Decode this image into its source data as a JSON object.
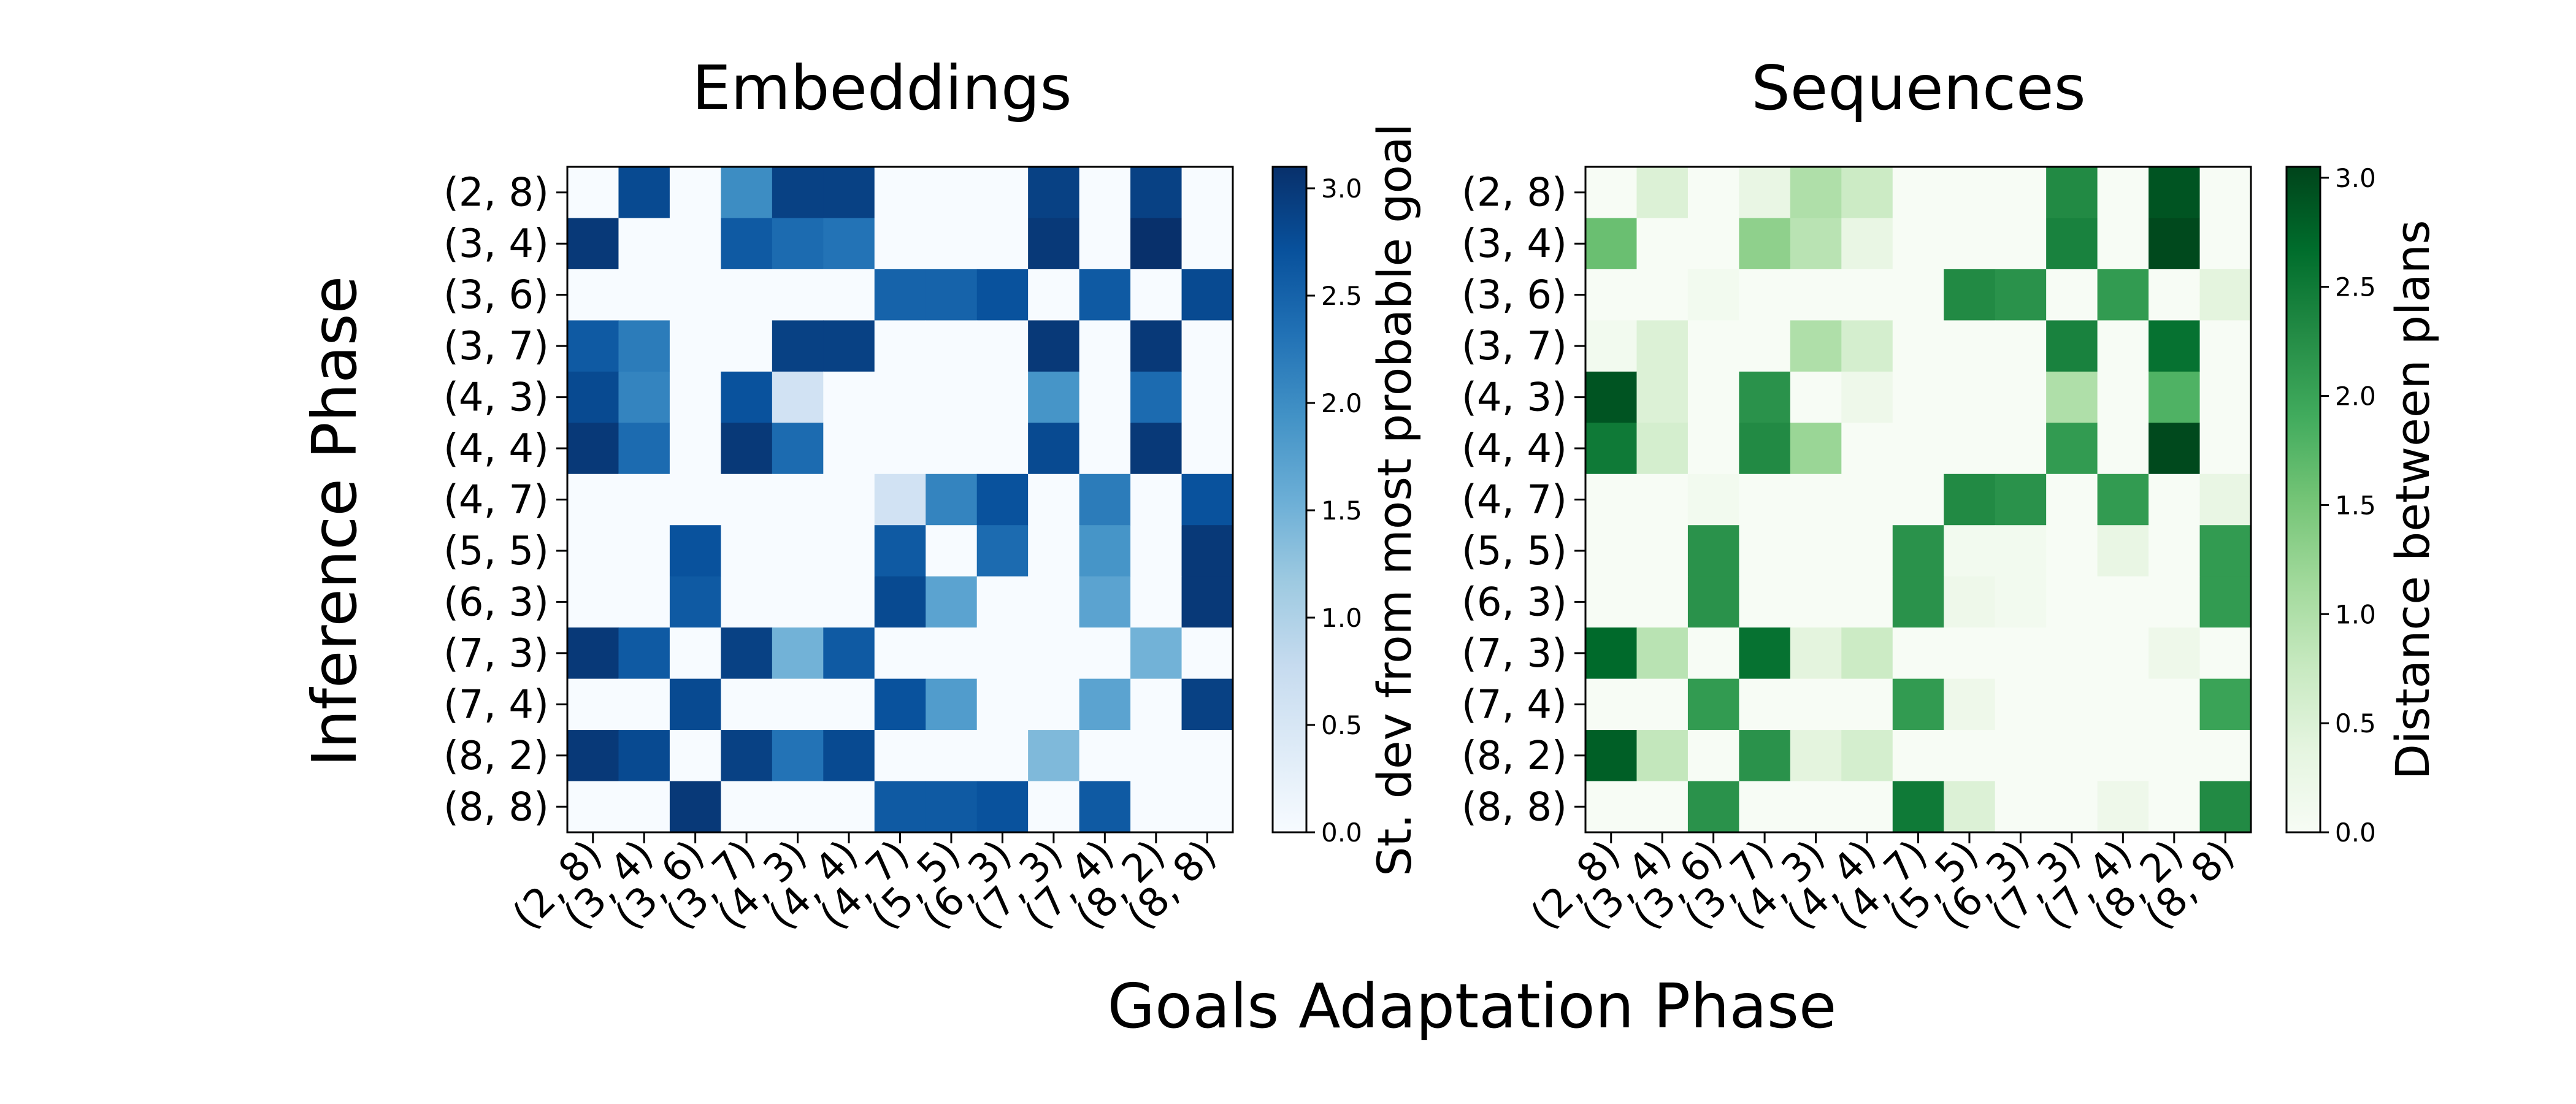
{
  "figure": {
    "supxlabel": "Goals Adaptation Phase",
    "supylabel": "Inference Phase"
  },
  "chart_data": [
    {
      "type": "heatmap",
      "title": "Embeddings",
      "colormap": "Blues",
      "vmin": 0,
      "vmax": 3.1,
      "colorbar_label": "St. dev from most probable goal",
      "colorbar_ticks": [
        "0.0",
        "0.5",
        "1.0",
        "1.5",
        "2.0",
        "2.5",
        "3.0"
      ],
      "colorbar_tick_values": [
        0,
        0.5,
        1.0,
        1.5,
        2.0,
        2.5,
        3.0
      ],
      "row_labels": [
        "(2, 8)",
        "(3, 4)",
        "(3, 6)",
        "(3, 7)",
        "(4, 3)",
        "(4, 4)",
        "(4, 7)",
        "(5, 5)",
        "(6, 3)",
        "(7, 3)",
        "(7, 4)",
        "(8, 2)",
        "(8, 8)"
      ],
      "col_labels": [
        "(2, 8)",
        "(3, 4)",
        "(3, 6)",
        "(3, 7)",
        "(4, 3)",
        "(4, 4)",
        "(4, 7)",
        "(5, 5)",
        "(6, 3)",
        "(7, 3)",
        "(7, 4)",
        "(8, 2)",
        "(8, 8)"
      ],
      "values": [
        [
          0,
          2.8,
          0,
          2.0,
          2.9,
          2.9,
          0,
          0,
          0,
          2.9,
          0,
          2.9,
          0
        ],
        [
          3.0,
          0,
          0,
          2.6,
          2.4,
          2.3,
          0,
          0,
          0,
          3.0,
          0,
          3.1,
          0
        ],
        [
          0,
          0,
          0,
          0,
          0,
          0,
          2.5,
          2.5,
          2.7,
          0,
          2.6,
          0,
          2.8
        ],
        [
          2.6,
          2.2,
          0,
          0,
          2.9,
          2.9,
          0,
          0,
          0,
          3.0,
          0,
          3.0,
          0
        ],
        [
          2.8,
          2.1,
          0,
          2.7,
          0.6,
          0,
          0,
          0,
          0,
          1.9,
          0,
          2.4,
          0
        ],
        [
          3.0,
          2.4,
          0,
          3.0,
          2.4,
          0,
          0,
          0,
          0,
          2.8,
          0,
          3.0,
          0
        ],
        [
          0,
          0,
          0,
          0,
          0,
          0,
          0.6,
          2.1,
          2.7,
          0,
          2.2,
          0,
          2.7
        ],
        [
          0,
          0,
          2.7,
          0,
          0,
          0,
          2.6,
          0,
          2.4,
          0,
          1.9,
          0,
          3.0
        ],
        [
          0,
          0,
          2.6,
          0,
          0,
          0,
          2.8,
          1.7,
          0,
          0,
          1.7,
          0,
          3.0
        ],
        [
          3.0,
          2.6,
          0,
          2.9,
          1.5,
          2.6,
          0,
          0,
          0,
          0,
          0,
          1.5,
          0
        ],
        [
          0,
          0,
          2.8,
          0,
          0,
          0,
          2.7,
          1.8,
          0,
          0,
          1.7,
          0,
          2.9
        ],
        [
          3.0,
          2.8,
          0,
          2.9,
          2.3,
          2.8,
          0,
          0,
          0,
          1.4,
          0,
          0,
          0
        ],
        [
          0,
          0,
          3.0,
          0,
          0,
          0,
          2.6,
          2.6,
          2.7,
          0,
          2.6,
          0,
          0
        ]
      ]
    },
    {
      "type": "heatmap",
      "title": "Sequences",
      "colormap": "Greens",
      "vmin": 0,
      "vmax": 3.05,
      "colorbar_label": "Distance between plans",
      "colorbar_ticks": [
        "0.0",
        "0.5",
        "1.0",
        "1.5",
        "2.0",
        "2.5",
        "3.0"
      ],
      "colorbar_tick_values": [
        0,
        0.5,
        1.0,
        1.5,
        2.0,
        2.5,
        3.0
      ],
      "row_labels": [
        "(2, 8)",
        "(3, 4)",
        "(3, 6)",
        "(3, 7)",
        "(4, 3)",
        "(4, 4)",
        "(4, 7)",
        "(5, 5)",
        "(6, 3)",
        "(7, 3)",
        "(7, 4)",
        "(8, 2)",
        "(8, 8)"
      ],
      "col_labels": [
        "(2, 8)",
        "(3, 4)",
        "(3, 6)",
        "(3, 7)",
        "(4, 3)",
        "(4, 4)",
        "(4, 7)",
        "(5, 5)",
        "(6, 3)",
        "(7, 3)",
        "(7, 4)",
        "(8, 2)",
        "(8, 8)"
      ],
      "values": [
        [
          0,
          0.5,
          0,
          0.3,
          1.0,
          0.7,
          0,
          0,
          0,
          2.3,
          0,
          2.9,
          0
        ],
        [
          1.6,
          0,
          0,
          1.3,
          0.9,
          0.3,
          0,
          0,
          0,
          2.4,
          0,
          3.0,
          0
        ],
        [
          0,
          0,
          0.1,
          0,
          0,
          0,
          0,
          2.3,
          2.2,
          0,
          2.1,
          0,
          0.4
        ],
        [
          0.1,
          0.5,
          0,
          0,
          1.0,
          0.6,
          0,
          0,
          0,
          2.4,
          0,
          2.6,
          0
        ],
        [
          2.9,
          0.5,
          0,
          2.2,
          0,
          0.2,
          0,
          0,
          0,
          1.0,
          0,
          1.8,
          0
        ],
        [
          2.5,
          0.6,
          0,
          2.3,
          1.2,
          0,
          0,
          0,
          0,
          2.1,
          0,
          3.0,
          0
        ],
        [
          0,
          0,
          0.1,
          0,
          0,
          0,
          0,
          2.3,
          2.2,
          0,
          2.1,
          0,
          0.3
        ],
        [
          0,
          0,
          2.2,
          0,
          0,
          0,
          2.2,
          0.1,
          0.1,
          0,
          0.3,
          0,
          2.1
        ],
        [
          0,
          0,
          2.2,
          0,
          0,
          0,
          2.2,
          0.2,
          0.1,
          0,
          0,
          0,
          2.1
        ],
        [
          2.7,
          0.9,
          0,
          2.6,
          0.4,
          0.7,
          0,
          0,
          0,
          0,
          0,
          0.2,
          0
        ],
        [
          0,
          0,
          2.1,
          0,
          0,
          0,
          2.1,
          0.2,
          0,
          0,
          0,
          0,
          2.0
        ],
        [
          2.8,
          0.8,
          0,
          2.2,
          0.4,
          0.6,
          0,
          0,
          0,
          0,
          0,
          0,
          0
        ],
        [
          0,
          0,
          2.2,
          0,
          0,
          0,
          2.5,
          0.5,
          0,
          0,
          0.2,
          0,
          2.3
        ]
      ]
    }
  ]
}
